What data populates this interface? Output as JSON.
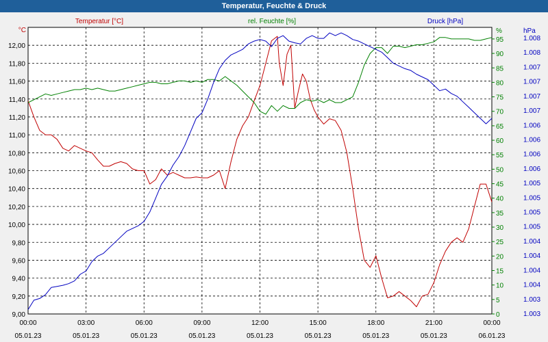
{
  "window": {
    "title": "Temperatur, Feuchte & Druck"
  },
  "chart_data": {
    "type": "line",
    "title": "Temperatur, Feuchte & Druck",
    "x_labels": [
      {
        "time": "00:00",
        "date": "05.01.23"
      },
      {
        "time": "03:00",
        "date": "05.01.23"
      },
      {
        "time": "06:00",
        "date": "05.01.23"
      },
      {
        "time": "09:00",
        "date": "05.01.23"
      },
      {
        "time": "12:00",
        "date": "05.01.23"
      },
      {
        "time": "15:00",
        "date": "05.01.23"
      },
      {
        "time": "18:00",
        "date": "05.01.23"
      },
      {
        "time": "21:00",
        "date": "05.01.23"
      },
      {
        "time": "00:00",
        "date": "06.01.23"
      }
    ],
    "x_range_hours": [
      0,
      24
    ],
    "axes": {
      "temperature": {
        "label": "Temperatur [°C]",
        "unit": "°C",
        "color": "#c00000",
        "range": [
          9.0,
          12.2
        ],
        "ticks": [
          "12,00",
          "11,80",
          "11,60",
          "11,40",
          "11,20",
          "11,00",
          "10,80",
          "10,60",
          "10,40",
          "10,20",
          "10,00",
          "9,80",
          "9,60",
          "9,40",
          "9,20",
          "9,00"
        ]
      },
      "humidity": {
        "label": "rel. Feuchte [%]",
        "unit": "%",
        "color": "#008000",
        "range": [
          0,
          99
        ],
        "ticks": [
          "95",
          "90",
          "85",
          "80",
          "75",
          "70",
          "65",
          "60",
          "55",
          "50",
          "45",
          "40",
          "35",
          "30",
          "25",
          "20",
          "15",
          "10",
          "5",
          "0"
        ]
      },
      "pressure": {
        "label": "Druck [hPa]",
        "unit": "hPa",
        "color": "#0000c0",
        "range": [
          1003,
          1008.2
        ],
        "ticks": [
          "1.008",
          "1.008",
          "1.007",
          "1.007",
          "1.007",
          "1.007",
          "1.006",
          "1.006",
          "1.006",
          "1.006",
          "1.005",
          "1.005",
          "1.005",
          "1.005",
          "1.004",
          "1.004",
          "1.004",
          "1.004",
          "1.003",
          "1.003"
        ]
      }
    },
    "series": [
      {
        "name": "Temperatur [°C]",
        "axis": "temperature",
        "x": [
          0,
          0.3,
          0.6,
          0.9,
          1.2,
          1.5,
          1.8,
          2.1,
          2.4,
          2.7,
          3.0,
          3.3,
          3.6,
          3.9,
          4.2,
          4.5,
          4.8,
          5.1,
          5.4,
          5.7,
          6.0,
          6.3,
          6.6,
          6.9,
          7.2,
          7.5,
          7.8,
          8.1,
          8.4,
          8.7,
          9.0,
          9.3,
          9.6,
          9.9,
          10.2,
          10.5,
          10.8,
          11.1,
          11.4,
          11.7,
          12.0,
          12.3,
          12.6,
          12.9,
          13.0,
          13.2,
          13.4,
          13.6,
          13.8,
          14.0,
          14.2,
          14.4,
          14.6,
          14.8,
          15.0,
          15.3,
          15.6,
          15.9,
          16.2,
          16.5,
          16.8,
          17.1,
          17.4,
          17.7,
          18.0,
          18.3,
          18.6,
          18.9,
          19.2,
          19.5,
          19.8,
          20.1,
          20.4,
          20.7,
          21.0,
          21.3,
          21.6,
          21.9,
          22.2,
          22.5,
          22.8,
          23.1,
          23.4,
          23.7,
          24.0
        ],
        "y": [
          11.38,
          11.2,
          11.05,
          11.0,
          11.0,
          10.95,
          10.85,
          10.82,
          10.88,
          10.85,
          10.82,
          10.8,
          10.72,
          10.65,
          10.65,
          10.68,
          10.7,
          10.68,
          10.62,
          10.6,
          10.6,
          10.45,
          10.5,
          10.62,
          10.55,
          10.58,
          10.55,
          10.52,
          10.52,
          10.53,
          10.52,
          10.52,
          10.55,
          10.6,
          10.4,
          10.7,
          10.95,
          11.1,
          11.2,
          11.38,
          11.55,
          11.8,
          12.05,
          12.1,
          11.8,
          11.55,
          11.9,
          12.0,
          11.3,
          11.5,
          11.68,
          11.6,
          11.4,
          11.28,
          11.2,
          11.12,
          11.18,
          11.16,
          11.05,
          10.8,
          10.4,
          9.95,
          9.6,
          9.52,
          9.65,
          9.4,
          9.18,
          9.2,
          9.25,
          9.2,
          9.15,
          9.08,
          9.2,
          9.22,
          9.35,
          9.55,
          9.7,
          9.8,
          9.85,
          9.8,
          9.95,
          10.2,
          10.45,
          10.45,
          10.25
        ]
      },
      {
        "name": "rel. Feuchte [%]",
        "axis": "humidity",
        "x": [
          0,
          0.3,
          0.6,
          0.9,
          1.2,
          1.5,
          1.8,
          2.1,
          2.4,
          2.7,
          3.0,
          3.3,
          3.6,
          3.9,
          4.2,
          4.5,
          4.8,
          5.1,
          5.4,
          5.7,
          6.0,
          6.3,
          6.6,
          6.9,
          7.2,
          7.5,
          7.8,
          8.1,
          8.4,
          8.7,
          9.0,
          9.3,
          9.6,
          9.9,
          10.2,
          10.5,
          10.8,
          11.1,
          11.4,
          11.7,
          12.0,
          12.3,
          12.6,
          12.9,
          13.2,
          13.5,
          13.8,
          14.1,
          14.4,
          14.7,
          15.0,
          15.3,
          15.6,
          15.9,
          16.2,
          16.5,
          16.8,
          17.1,
          17.4,
          17.7,
          18.0,
          18.3,
          18.6,
          18.9,
          19.2,
          19.5,
          19.8,
          20.1,
          20.4,
          20.7,
          21.0,
          21.3,
          21.6,
          21.9,
          22.2,
          22.5,
          22.8,
          23.1,
          23.4,
          23.7,
          24.0
        ],
        "y": [
          73,
          74,
          75,
          76,
          75.5,
          76,
          76.5,
          77,
          77.5,
          77.5,
          78,
          77.5,
          78,
          77.5,
          77,
          77,
          77.5,
          78,
          78.5,
          79,
          79.5,
          80,
          80,
          79.5,
          79.5,
          80,
          80.5,
          80.5,
          80,
          80.5,
          80,
          81,
          81,
          80.5,
          82,
          80.5,
          79,
          77,
          75,
          73,
          70,
          69,
          72,
          70,
          72,
          71,
          71,
          73,
          74,
          73.5,
          74,
          73,
          74,
          73,
          73,
          74,
          75,
          80,
          86,
          90,
          92,
          92,
          90,
          92.5,
          92.5,
          92,
          92.5,
          93,
          93,
          93.5,
          94,
          95.5,
          95.5,
          95,
          95,
          95,
          95,
          94.5,
          94.5,
          95,
          95.5
        ]
      },
      {
        "name": "Druck [hPa]",
        "axis": "pressure",
        "x": [
          0,
          0.3,
          0.6,
          0.9,
          1.2,
          1.5,
          1.8,
          2.1,
          2.4,
          2.7,
          3.0,
          3.3,
          3.6,
          3.9,
          4.2,
          4.5,
          4.8,
          5.1,
          5.4,
          5.7,
          6.0,
          6.3,
          6.6,
          6.9,
          7.2,
          7.5,
          7.8,
          8.1,
          8.4,
          8.7,
          9.0,
          9.3,
          9.6,
          9.9,
          10.2,
          10.5,
          10.8,
          11.1,
          11.4,
          11.7,
          12.0,
          12.3,
          12.6,
          12.9,
          13.2,
          13.5,
          13.8,
          14.1,
          14.4,
          14.7,
          15.0,
          15.3,
          15.6,
          15.9,
          16.2,
          16.5,
          16.8,
          17.1,
          17.4,
          17.7,
          18.0,
          18.3,
          18.6,
          18.9,
          19.2,
          19.5,
          19.8,
          20.1,
          20.4,
          20.7,
          21.0,
          21.3,
          21.6,
          21.9,
          22.2,
          22.5,
          22.8,
          23.1,
          23.4,
          23.7,
          24.0
        ],
        "y": [
          1003.08,
          1003.25,
          1003.28,
          1003.35,
          1003.48,
          1003.5,
          1003.52,
          1003.55,
          1003.6,
          1003.72,
          1003.78,
          1003.95,
          1004.05,
          1004.1,
          1004.2,
          1004.3,
          1004.4,
          1004.5,
          1004.55,
          1004.6,
          1004.68,
          1004.85,
          1005.1,
          1005.35,
          1005.5,
          1005.7,
          1005.85,
          1006.05,
          1006.3,
          1006.55,
          1006.65,
          1006.9,
          1007.2,
          1007.45,
          1007.6,
          1007.7,
          1007.75,
          1007.8,
          1007.9,
          1007.95,
          1007.98,
          1007.95,
          1007.85,
          1008.0,
          1008.05,
          1007.95,
          1007.92,
          1007.9,
          1008.0,
          1008.05,
          1008.0,
          1008.0,
          1008.1,
          1008.05,
          1008.1,
          1008.05,
          1007.98,
          1007.95,
          1007.9,
          1007.85,
          1007.8,
          1007.75,
          1007.65,
          1007.55,
          1007.5,
          1007.45,
          1007.42,
          1007.35,
          1007.3,
          1007.25,
          1007.15,
          1007.05,
          1007.08,
          1007.0,
          1006.95,
          1006.85,
          1006.75,
          1006.65,
          1006.55,
          1006.45,
          1006.55
        ]
      }
    ]
  }
}
